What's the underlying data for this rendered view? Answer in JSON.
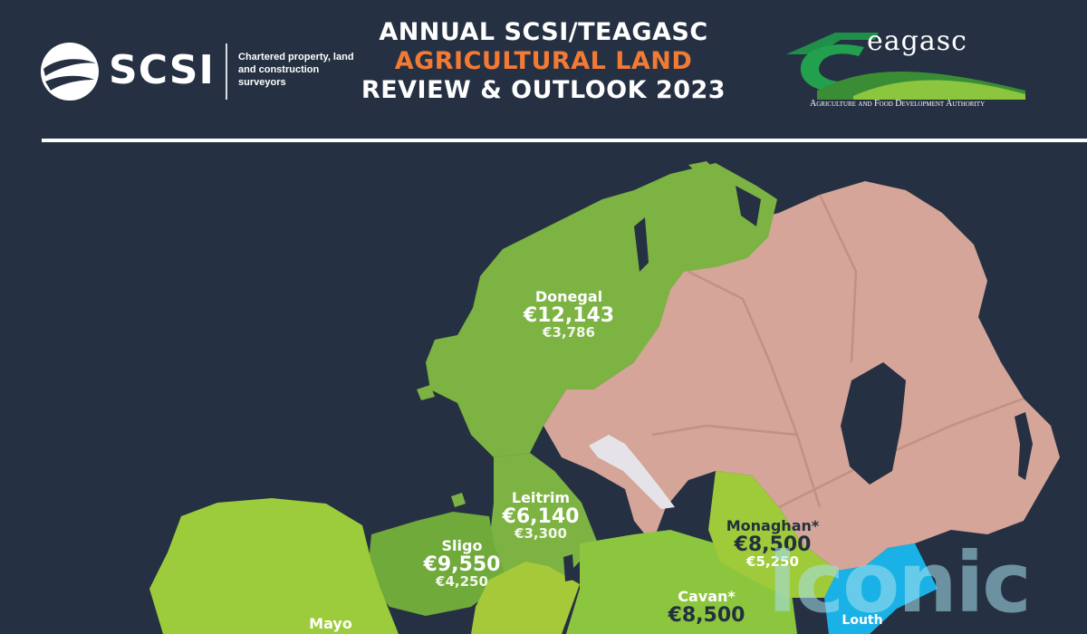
{
  "header": {
    "scsi_logo_text": "SCSI",
    "scsi_tagline": "Chartered property, land and construction surveyors",
    "title_line1": "ANNUAL SCSI/TEAGASC",
    "title_line2": "AGRICULTURAL LAND",
    "title_line3": "REVIEW & OUTLOOK 2023",
    "teagasc_logo_text": "eagasc",
    "teagasc_subtitle": "Agriculture and Food Development Authority"
  },
  "colors": {
    "background": "#253142",
    "title_accent": "#f37a35",
    "county_green_dark": "#7cb342",
    "county_green_light": "#a6c93a",
    "northern_ireland": "#d4a598",
    "louth": "#1ab2e6"
  },
  "counties": [
    {
      "key": "donegal",
      "name": "Donegal",
      "price": "€12,143",
      "price2": "€3,786"
    },
    {
      "key": "leitrim",
      "name": "Leitrim",
      "price": "€6,140",
      "price2": "€3,300"
    },
    {
      "key": "sligo",
      "name": "Sligo",
      "price": "€9,550",
      "price2": "€4,250"
    },
    {
      "key": "monaghan",
      "name": "Monaghan*",
      "price": "€8,500",
      "price2": "€5,250"
    },
    {
      "key": "cavan",
      "name": "Cavan*",
      "price": "€8,500",
      "price2": ""
    },
    {
      "key": "mayo",
      "name": "Mayo",
      "price": "",
      "price2": ""
    },
    {
      "key": "louth",
      "name": "Louth",
      "price": "",
      "price2": ""
    }
  ],
  "watermark": "iconic"
}
